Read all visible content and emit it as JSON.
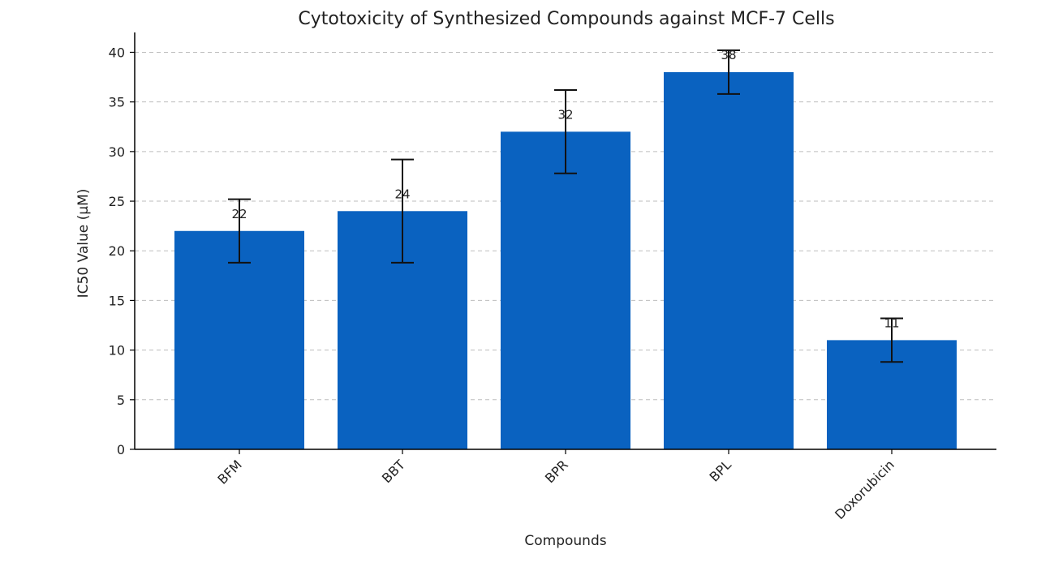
{
  "chart_data": {
    "type": "bar",
    "title": "Cytotoxicity of Synthesized Compounds against MCF-7 Cells",
    "xlabel": "Compounds",
    "ylabel": "IC50 Value (µM)",
    "categories": [
      "BFM",
      "BBT",
      "BPR",
      "BPL",
      "Doxorubicin"
    ],
    "values": [
      22,
      24,
      32,
      38,
      11
    ],
    "data_labels": [
      "22",
      "24",
      "32",
      "38",
      "11"
    ],
    "error_bars": [
      {
        "low": 18.8,
        "high": 25.2
      },
      {
        "low": 18.8,
        "high": 29.2
      },
      {
        "low": 27.8,
        "high": 36.2
      },
      {
        "low": 35.8,
        "high": 40.2
      },
      {
        "low": 8.8,
        "high": 13.2
      }
    ],
    "ylim": [
      0,
      42
    ],
    "yticks": [
      0,
      5,
      10,
      15,
      20,
      25,
      30,
      35,
      40
    ],
    "ytick_labels": [
      "0",
      "5",
      "10",
      "15",
      "20",
      "25",
      "30",
      "35",
      "40"
    ],
    "grid": "horizontal-dashed",
    "bar_color": "#0a62c0"
  }
}
